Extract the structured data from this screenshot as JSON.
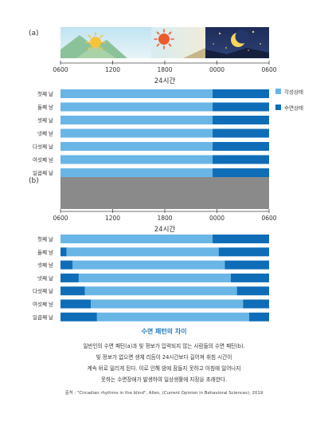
{
  "panel_a": {
    "label": "(a)",
    "x_ticks": [
      "0600",
      "1200",
      "1800",
      "0000",
      "0600"
    ],
    "x_label": "24시간"
  },
  "panel_b": {
    "label": "(b)",
    "x_ticks": [
      "0600",
      "1200",
      "1800",
      "0000",
      "0600"
    ],
    "x_label": "24시간"
  },
  "legend": [
    {
      "label": "각성상태",
      "color": "#69b6e6"
    },
    {
      "label": "수면상태",
      "color": "#0f6db8"
    }
  ],
  "colors": {
    "awake": "#69b6e6",
    "sleep": "#0f6db8",
    "blind_bar": "#8a8a8a"
  },
  "chart_data": [
    {
      "type": "bar",
      "orientation": "horizontal-stacked",
      "x_axis": {
        "ticks": [
          "0600",
          "1200",
          "1800",
          "0000",
          "0600"
        ],
        "range_hours": [
          6,
          30
        ],
        "label": "24시간"
      },
      "categories": [
        "첫째 날",
        "둘째 날",
        "셋째 날",
        "넷째 날",
        "다섯째 날",
        "여섯째 날",
        "일곱째 날"
      ],
      "series": [
        {
          "name": "각성상태",
          "segments": [
            [
              6,
              23.5
            ],
            [
              6,
              23.5
            ],
            [
              6,
              23.5
            ],
            [
              6,
              23.5
            ],
            [
              6,
              23.5
            ],
            [
              6,
              23.5
            ],
            [
              6,
              23.5
            ]
          ]
        },
        {
          "name": "수면상태",
          "segments": [
            [
              23.5,
              30
            ],
            [
              23.5,
              30
            ],
            [
              23.5,
              30
            ],
            [
              23.5,
              30
            ],
            [
              23.5,
              30
            ],
            [
              23.5,
              30
            ],
            [
              23.5,
              30
            ]
          ]
        }
      ]
    },
    {
      "type": "bar",
      "orientation": "horizontal-stacked",
      "x_axis": {
        "ticks": [
          "0600",
          "1200",
          "1800",
          "0000",
          "0600"
        ],
        "range_hours": [
          6,
          30
        ],
        "label": "24시간"
      },
      "categories": [
        "첫째 날",
        "둘째 날",
        "셋째 날",
        "넷째 날",
        "다섯째 날",
        "여섯째 날",
        "일곱째 날"
      ],
      "rows": [
        {
          "sleep_before_hours": 0,
          "wake_start": 6,
          "sleep_start": 23.5
        },
        {
          "sleep_before_hours": 0.7,
          "wake_start": 6.7,
          "sleep_start": 24.2
        },
        {
          "sleep_before_hours": 1.4,
          "wake_start": 7.4,
          "sleep_start": 24.9
        },
        {
          "sleep_before_hours": 2.1,
          "wake_start": 8.1,
          "sleep_start": 25.6
        },
        {
          "sleep_before_hours": 2.8,
          "wake_start": 8.8,
          "sleep_start": 26.3
        },
        {
          "sleep_before_hours": 3.5,
          "wake_start": 9.5,
          "sleep_start": 27.0
        },
        {
          "sleep_before_hours": 4.2,
          "wake_start": 10.2,
          "sleep_start": 27.7
        }
      ]
    }
  ],
  "caption": {
    "title": "수면 패턴의 차이",
    "lines": [
      "일반인의 수면 패턴(a)과 빛 정보가 입력되지 않는 사람들의 수면 패턴(b).",
      "빛 정보가 없으면 생체 리듬이 24시간보다 길어져 취침 시간이",
      "계속 뒤로 밀리게 된다. 이로 인해 밤에 잠들지 못하고 아침에 일어나지",
      "못하는 수면장애가 발생하여 일상생활에 지장을 초래한다."
    ],
    "source": "출처 : \"Circadian rhythms in the blind\", Allen, (Current Opinion in Behavioral Sciences), 2019"
  }
}
